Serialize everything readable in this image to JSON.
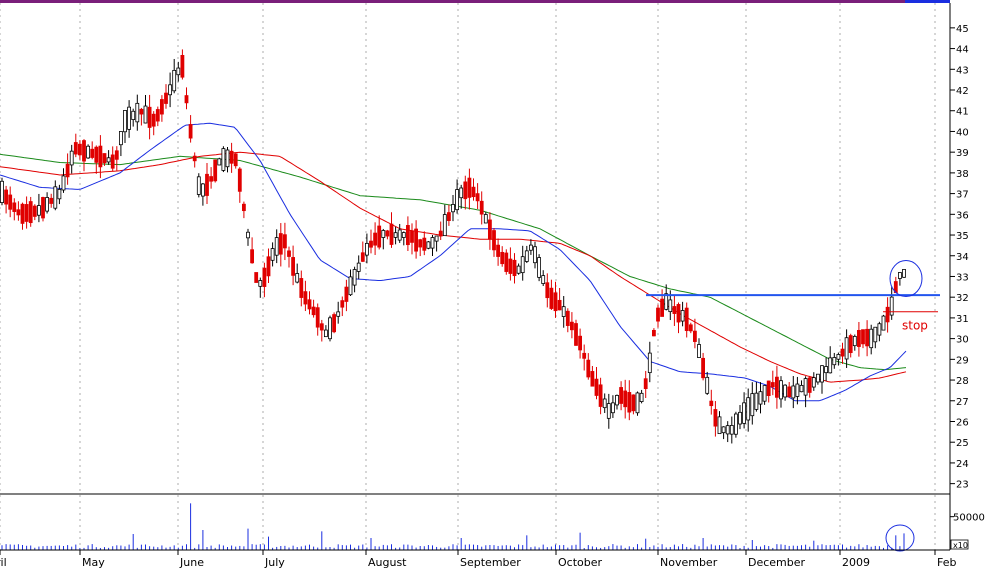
{
  "chart_data": {
    "type": "candlestick",
    "title": "",
    "xlabel": "",
    "ylabel": "",
    "ylim": [
      22.5,
      46.2
    ],
    "y_ticks": [
      23,
      24,
      25,
      26,
      27,
      28,
      29,
      30,
      31,
      32,
      33,
      34,
      35,
      36,
      37,
      38,
      39,
      40,
      41,
      42,
      43,
      44,
      45
    ],
    "x_months": [
      "ril",
      "May",
      "June",
      "July",
      "August",
      "September",
      "October",
      "November",
      "December",
      "2009",
      "Feb"
    ],
    "grid": true,
    "colors": {
      "up": "#000000",
      "down": "#e00000",
      "ma_short": "#1a2ee0",
      "ma_mid": "#e00000",
      "ma_long": "#1a8a1a",
      "resistance": "#2255ee",
      "stop": "#e00000",
      "volume": "#1a2ee0"
    },
    "price_knots": [
      [
        0,
        37.2
      ],
      [
        20,
        36.0
      ],
      [
        40,
        36.2
      ],
      [
        60,
        37.0
      ],
      [
        75,
        39.2
      ],
      [
        95,
        38.9
      ],
      [
        115,
        38.5
      ],
      [
        125,
        40.5
      ],
      [
        140,
        41.0
      ],
      [
        155,
        40.5
      ],
      [
        170,
        42.0
      ],
      [
        182,
        43.3
      ],
      [
        190,
        40.2
      ],
      [
        200,
        37.0
      ],
      [
        210,
        37.6
      ],
      [
        220,
        38.6
      ],
      [
        235,
        38.8
      ],
      [
        240,
        37.6
      ],
      [
        248,
        35.0
      ],
      [
        258,
        32.5
      ],
      [
        265,
        33.0
      ],
      [
        275,
        34.4
      ],
      [
        285,
        34.7
      ],
      [
        295,
        33.2
      ],
      [
        305,
        32.0
      ],
      [
        318,
        31.0
      ],
      [
        325,
        30.2
      ],
      [
        335,
        30.8
      ],
      [
        345,
        32.0
      ],
      [
        355,
        33.0
      ],
      [
        365,
        34.2
      ],
      [
        375,
        34.8
      ],
      [
        385,
        35.1
      ],
      [
        395,
        35.0
      ],
      [
        410,
        35.0
      ],
      [
        420,
        34.6
      ],
      [
        430,
        34.5
      ],
      [
        440,
        35.0
      ],
      [
        450,
        36.0
      ],
      [
        460,
        37.0
      ],
      [
        470,
        37.3
      ],
      [
        478,
        36.8
      ],
      [
        488,
        35.5
      ],
      [
        500,
        34.0
      ],
      [
        510,
        33.5
      ],
      [
        520,
        33.3
      ],
      [
        532,
        34.5
      ],
      [
        542,
        33.0
      ],
      [
        550,
        32.0
      ],
      [
        560,
        31.6
      ],
      [
        570,
        30.8
      ],
      [
        580,
        29.8
      ],
      [
        590,
        28.3
      ],
      [
        600,
        27.3
      ],
      [
        610,
        26.4
      ],
      [
        620,
        27.3
      ],
      [
        630,
        26.9
      ],
      [
        640,
        26.9
      ],
      [
        648,
        28.2
      ],
      [
        656,
        31.0
      ],
      [
        666,
        31.8
      ],
      [
        676,
        31.3
      ],
      [
        686,
        31.0
      ],
      [
        696,
        30.0
      ],
      [
        706,
        28.0
      ],
      [
        714,
        26.3
      ],
      [
        722,
        25.6
      ],
      [
        732,
        25.6
      ],
      [
        742,
        26.3
      ],
      [
        752,
        26.8
      ],
      [
        762,
        27.2
      ],
      [
        772,
        27.8
      ],
      [
        782,
        27.5
      ],
      [
        792,
        27.4
      ],
      [
        802,
        27.6
      ],
      [
        812,
        27.8
      ],
      [
        822,
        28.3
      ],
      [
        832,
        28.8
      ],
      [
        842,
        29.3
      ],
      [
        852,
        29.8
      ],
      [
        862,
        30.1
      ],
      [
        872,
        30.0
      ],
      [
        882,
        30.6
      ],
      [
        892,
        31.6
      ],
      [
        898,
        33.0
      ],
      [
        906,
        33.2
      ]
    ],
    "ma_short_knots": [
      [
        0,
        37.9
      ],
      [
        40,
        37.3
      ],
      [
        80,
        37.2
      ],
      [
        120,
        38.0
      ],
      [
        150,
        39.1
      ],
      [
        185,
        40.3
      ],
      [
        210,
        40.4
      ],
      [
        235,
        40.2
      ],
      [
        260,
        38.6
      ],
      [
        290,
        36.0
      ],
      [
        320,
        33.8
      ],
      [
        350,
        32.9
      ],
      [
        380,
        32.8
      ],
      [
        410,
        33.0
      ],
      [
        440,
        34.0
      ],
      [
        470,
        35.3
      ],
      [
        500,
        35.3
      ],
      [
        530,
        35.2
      ],
      [
        560,
        34.3
      ],
      [
        590,
        32.8
      ],
      [
        620,
        30.6
      ],
      [
        650,
        28.9
      ],
      [
        680,
        28.4
      ],
      [
        710,
        28.3
      ],
      [
        745,
        28.1
      ],
      [
        770,
        27.7
      ],
      [
        795,
        27.0
      ],
      [
        820,
        27.0
      ],
      [
        845,
        27.5
      ],
      [
        870,
        28.2
      ],
      [
        890,
        28.6
      ],
      [
        906,
        29.4
      ]
    ],
    "ma_mid_knots": [
      [
        0,
        38.3
      ],
      [
        60,
        37.9
      ],
      [
        120,
        38.1
      ],
      [
        160,
        38.4
      ],
      [
        200,
        38.8
      ],
      [
        240,
        39.0
      ],
      [
        280,
        38.8
      ],
      [
        320,
        37.6
      ],
      [
        360,
        36.3
      ],
      [
        400,
        35.3
      ],
      [
        440,
        35.0
      ],
      [
        480,
        34.8
      ],
      [
        520,
        34.8
      ],
      [
        560,
        34.6
      ],
      [
        590,
        34.0
      ],
      [
        620,
        33.0
      ],
      [
        650,
        32.1
      ],
      [
        680,
        31.2
      ],
      [
        710,
        30.4
      ],
      [
        740,
        29.6
      ],
      [
        770,
        28.9
      ],
      [
        800,
        28.3
      ],
      [
        830,
        27.9
      ],
      [
        860,
        28.0
      ],
      [
        880,
        28.1
      ],
      [
        906,
        28.4
      ]
    ],
    "ma_long_knots": [
      [
        0,
        38.9
      ],
      [
        60,
        38.5
      ],
      [
        120,
        38.4
      ],
      [
        180,
        38.8
      ],
      [
        240,
        38.6
      ],
      [
        300,
        37.8
      ],
      [
        360,
        36.9
      ],
      [
        420,
        36.7
      ],
      [
        480,
        36.2
      ],
      [
        540,
        35.3
      ],
      [
        590,
        34.0
      ],
      [
        630,
        33.0
      ],
      [
        670,
        32.4
      ],
      [
        710,
        32.0
      ],
      [
        750,
        31.0
      ],
      [
        790,
        30.0
      ],
      [
        830,
        29.0
      ],
      [
        860,
        28.6
      ],
      [
        885,
        28.5
      ],
      [
        906,
        28.6
      ]
    ],
    "resistance_level": 32.1,
    "stop_level": 31.3,
    "stop_label": "stop",
    "volume_scale_label": "50000",
    "volume_scale_value": 50000,
    "volume_multiplier_label": "x10",
    "volume_spikes": [
      [
        132,
        24000
      ],
      [
        187,
        70000
      ],
      [
        200,
        30000
      ],
      [
        245,
        32000
      ],
      [
        265,
        20000
      ],
      [
        320,
        28000
      ],
      [
        370,
        18000
      ],
      [
        460,
        18000
      ],
      [
        525,
        22000
      ],
      [
        578,
        26000
      ],
      [
        644,
        17000
      ],
      [
        700,
        18000
      ],
      [
        750,
        15000
      ],
      [
        810,
        14000
      ],
      [
        895,
        22000
      ],
      [
        900,
        25000
      ],
      [
        905,
        20000
      ]
    ]
  }
}
